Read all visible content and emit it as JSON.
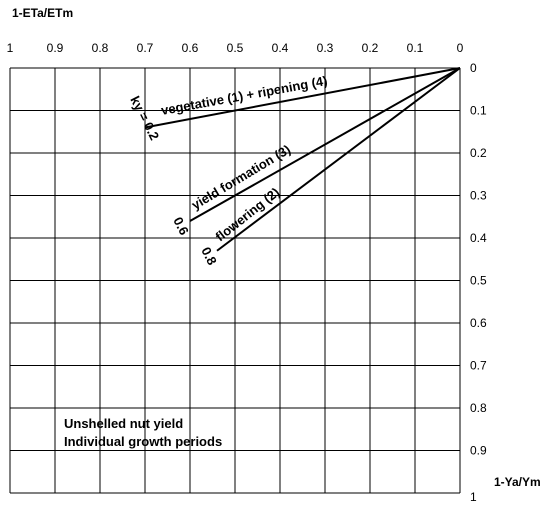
{
  "chart_data": {
    "type": "line",
    "xlabel": "1-Ya/Ym",
    "ylabel": "1-ETa/ETm",
    "xlim": [
      1,
      0
    ],
    "ylim": [
      0,
      1
    ],
    "x_ticks": [
      "1",
      "0.9",
      "0.8",
      "0.7",
      "0.6",
      "0.5",
      "0.4",
      "0.3",
      "0.2",
      "0.1",
      "0"
    ],
    "y_ticks": [
      "0",
      "0.1",
      "0.2",
      "0.3",
      "0.4",
      "0.5",
      "0.6",
      "0.7",
      "0.8",
      "0.9",
      "1"
    ],
    "grid": true,
    "series": [
      {
        "name": "vegetative (1) + ripening (4)",
        "ky_label": "ky = 0.2",
        "x": [
          0,
          0.7
        ],
        "y": [
          0,
          0.14
        ]
      },
      {
        "name": "yield formation (3)",
        "ky_label": "0.6",
        "x": [
          0,
          0.6
        ],
        "y": [
          0,
          0.36
        ]
      },
      {
        "name": "flowering (2)",
        "ky_label": "0.8",
        "x": [
          0,
          0.54
        ],
        "y": [
          0,
          0.43
        ]
      }
    ],
    "annotations": [
      "Unshelled nut yield",
      "Individual growth periods"
    ]
  }
}
